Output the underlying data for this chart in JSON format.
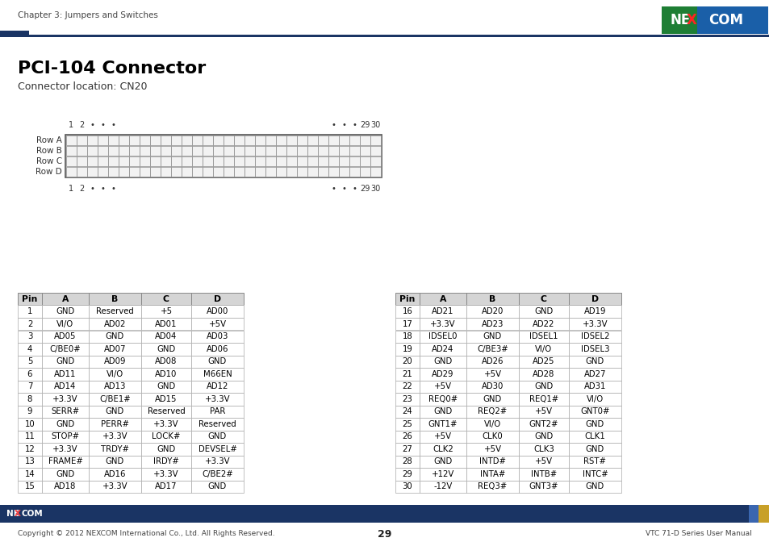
{
  "title": "PCI-104 Connector",
  "subtitle": "Connector location: CN20",
  "header_text": "Chapter 3: Jumpers and Switches",
  "footer_left": "Copyright © 2012 NEXCOM International Co., Ltd. All Rights Reserved.",
  "footer_center": "29",
  "footer_right": "VTC 71-D Series User Manual",
  "table1_headers": [
    "Pin",
    "A",
    "B",
    "C",
    "D"
  ],
  "table1_rows": [
    [
      "1",
      "GND",
      "Reserved",
      "+5",
      "AD00"
    ],
    [
      "2",
      "VI/O",
      "AD02",
      "AD01",
      "+5V"
    ],
    [
      "3",
      "AD05",
      "GND",
      "AD04",
      "AD03"
    ],
    [
      "4",
      "C/BE0#",
      "AD07",
      "GND",
      "AD06"
    ],
    [
      "5",
      "GND",
      "AD09",
      "AD08",
      "GND"
    ],
    [
      "6",
      "AD11",
      "VI/O",
      "AD10",
      "M66EN"
    ],
    [
      "7",
      "AD14",
      "AD13",
      "GND",
      "AD12"
    ],
    [
      "8",
      "+3.3V",
      "C/BE1#",
      "AD15",
      "+3.3V"
    ],
    [
      "9",
      "SERR#",
      "GND",
      "Reserved",
      "PAR"
    ],
    [
      "10",
      "GND",
      "PERR#",
      "+3.3V",
      "Reserved"
    ],
    [
      "11",
      "STOP#",
      "+3.3V",
      "LOCK#",
      "GND"
    ],
    [
      "12",
      "+3.3V",
      "TRDY#",
      "GND",
      "DEVSEL#"
    ],
    [
      "13",
      "FRAME#",
      "GND",
      "IRDY#",
      "+3.3V"
    ],
    [
      "14",
      "GND",
      "AD16",
      "+3.3V",
      "C/BE2#"
    ],
    [
      "15",
      "AD18",
      "+3.3V",
      "AD17",
      "GND"
    ]
  ],
  "table2_headers": [
    "Pin",
    "A",
    "B",
    "C",
    "D"
  ],
  "table2_rows": [
    [
      "16",
      "AD21",
      "AD20",
      "GND",
      "AD19"
    ],
    [
      "17",
      "+3.3V",
      "AD23",
      "AD22",
      "+3.3V"
    ],
    [
      "18",
      "IDSEL0",
      "GND",
      "IDSEL1",
      "IDSEL2"
    ],
    [
      "19",
      "AD24",
      "C/BE3#",
      "VI/O",
      "IDSEL3"
    ],
    [
      "20",
      "GND",
      "AD26",
      "AD25",
      "GND"
    ],
    [
      "21",
      "AD29",
      "+5V",
      "AD28",
      "AD27"
    ],
    [
      "22",
      "+5V",
      "AD30",
      "GND",
      "AD31"
    ],
    [
      "23",
      "REQ0#",
      "GND",
      "REQ1#",
      "VI/O"
    ],
    [
      "24",
      "GND",
      "REQ2#",
      "+5V",
      "GNT0#"
    ],
    [
      "25",
      "GNT1#",
      "VI/O",
      "GNT2#",
      "GND"
    ],
    [
      "26",
      "+5V",
      "CLK0",
      "GND",
      "CLK1"
    ],
    [
      "27",
      "CLK2",
      "+5V",
      "CLK3",
      "GND"
    ],
    [
      "28",
      "GND",
      "INTD#",
      "+5V",
      "RST#"
    ],
    [
      "29",
      "+12V",
      "INTA#",
      "INTB#",
      "INTC#"
    ],
    [
      "30",
      "-12V",
      "REQ3#",
      "GNT3#",
      "GND"
    ]
  ],
  "dark_blue": "#1a3464",
  "nexcom_green": "#1e7e34",
  "nexcom_blue_logo": "#1a5fa8",
  "connector_fill": "#f2f2f2",
  "connector_border": "#888888"
}
